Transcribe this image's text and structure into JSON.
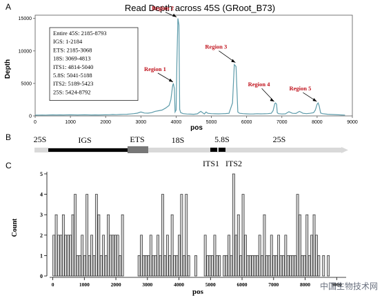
{
  "watermark": "中国生物技术网",
  "panels": {
    "a": "A",
    "b": "B",
    "c": "C"
  },
  "chart_data": [
    {
      "type": "line",
      "title": "Read Depth across 45S (GRoot_B73)",
      "xlabel": "pos",
      "ylabel": "Depth",
      "xlim": [
        0,
        9000
      ],
      "ylim": [
        0,
        15500
      ],
      "xticks": [
        0,
        1000,
        2000,
        3000,
        4000,
        5000,
        6000,
        7000,
        8000,
        9000
      ],
      "yticks": [
        0,
        5000,
        10000,
        15000
      ],
      "color": "#5b9aa9",
      "x": [
        0,
        100,
        200,
        300,
        400,
        500,
        600,
        700,
        800,
        900,
        1000,
        1100,
        1200,
        1300,
        1400,
        1500,
        1600,
        1700,
        1800,
        1900,
        2000,
        2100,
        2200,
        2300,
        2400,
        2500,
        2600,
        2700,
        2800,
        2900,
        3000,
        3100,
        3200,
        3300,
        3400,
        3500,
        3600,
        3700,
        3800,
        3850,
        3900,
        3920,
        3950,
        3970,
        4000,
        4020,
        4050,
        4080,
        4100,
        4130,
        4200,
        4300,
        4400,
        4500,
        4600,
        4700,
        4750,
        4800,
        4850,
        4900,
        5000,
        5100,
        5200,
        5300,
        5400,
        5500,
        5600,
        5650,
        5700,
        5750,
        5800,
        5900,
        6000,
        6100,
        6200,
        6300,
        6400,
        6500,
        6600,
        6700,
        6750,
        6800,
        6820,
        6850,
        6870,
        6900,
        7000,
        7100,
        7200,
        7300,
        7400,
        7500,
        7600,
        7700,
        7800,
        7900,
        7950,
        8000,
        8030,
        8060,
        8100,
        8150,
        8300,
        8500,
        8700,
        8792
      ],
      "y": [
        120,
        130,
        140,
        125,
        150,
        160,
        145,
        155,
        150,
        160,
        165,
        155,
        150,
        160,
        170,
        160,
        150,
        155,
        150,
        160,
        170,
        180,
        210,
        190,
        220,
        240,
        260,
        300,
        350,
        420,
        600,
        450,
        420,
        500,
        700,
        800,
        900,
        1200,
        1600,
        2500,
        4600,
        5000,
        4200,
        600,
        900,
        8000,
        15000,
        14000,
        1000,
        500,
        350,
        300,
        280,
        260,
        320,
        700,
        500,
        300,
        600,
        400,
        350,
        330,
        320,
        340,
        360,
        400,
        2000,
        7900,
        7600,
        600,
        400,
        350,
        320,
        300,
        310,
        340,
        320,
        330,
        350,
        400,
        800,
        1900,
        2000,
        1800,
        500,
        350,
        300,
        320,
        650,
        400,
        380,
        700,
        400,
        350,
        400,
        500,
        900,
        1800,
        2000,
        1500,
        450,
        350,
        250,
        200,
        150,
        130
      ],
      "legend_box": [
        "Entire 45S: 2185-8793",
        "IGS: 1-2184",
        "ETS: 2185-3068",
        "18S: 3069-4813",
        "ITS1: 4814-5040",
        "5.8S: 5041-5188",
        "ITS2: 5189-5423",
        "25S: 5424-8792"
      ],
      "annotations": [
        {
          "text": "Region 1",
          "x": 3950,
          "y": 5000
        },
        {
          "text": "Region 2",
          "x": 4050,
          "y": 15000
        },
        {
          "text": "Region 3",
          "x": 5720,
          "y": 8000
        },
        {
          "text": "Region 4",
          "x": 6820,
          "y": 2000
        },
        {
          "text": "Region 5",
          "x": 8030,
          "y": 2000
        }
      ]
    },
    {
      "type": "diagram",
      "labels_top": [
        "25S",
        "IGS",
        "ETS",
        "18S",
        "5.8S",
        "25S"
      ],
      "labels_bottom": [
        "ITS1",
        "ITS2"
      ]
    },
    {
      "type": "bar",
      "xlabel": "pos",
      "ylabel": "Count",
      "xlim": [
        -100,
        9300
      ],
      "ylim": [
        0,
        5.1
      ],
      "xticks": [
        0,
        1000,
        2000,
        3000,
        4000,
        5000,
        6000,
        7000,
        8000,
        9000
      ],
      "yticks": [
        0,
        1,
        2,
        3,
        4,
        5
      ],
      "bin_width": 75,
      "x": [
        0,
        75,
        150,
        225,
        300,
        375,
        450,
        525,
        600,
        675,
        750,
        825,
        900,
        975,
        1050,
        1125,
        1200,
        1275,
        1350,
        1425,
        1500,
        1575,
        1650,
        1725,
        1800,
        1875,
        1950,
        2025,
        2100,
        2175,
        2700,
        2775,
        2850,
        2925,
        3000,
        3075,
        3150,
        3225,
        3300,
        3375,
        3450,
        3525,
        3600,
        3675,
        3750,
        3825,
        3900,
        3975,
        4050,
        4125,
        4200,
        4275,
        4500,
        4800,
        4875,
        4950,
        5025,
        5100,
        5175,
        5250,
        5400,
        5475,
        5550,
        5625,
        5700,
        5775,
        5850,
        5925,
        6000,
        6075,
        6150,
        6225,
        6300,
        6375,
        6450,
        6525,
        6600,
        6675,
        6750,
        6825,
        6900,
        6975,
        7050,
        7125,
        7200,
        7275,
        7350,
        7425,
        7500,
        7575,
        7650,
        7725,
        7800,
        7875,
        7950,
        8025,
        8100,
        8175,
        8250,
        8325,
        8400,
        8550,
        8700
      ],
      "values": [
        2,
        3,
        2,
        2,
        3,
        2,
        2,
        2,
        3,
        4,
        1,
        1,
        2,
        1,
        4,
        1,
        2,
        1,
        4,
        3,
        1,
        2,
        1,
        3,
        2,
        2,
        2,
        2,
        1,
        3,
        1,
        2,
        1,
        1,
        1,
        2,
        1,
        1,
        2,
        1,
        4,
        1,
        2,
        1,
        3,
        1,
        1,
        2,
        4,
        1,
        4,
        1,
        1,
        2,
        1,
        1,
        1,
        2,
        1,
        1,
        1,
        1,
        2,
        1,
        5,
        2,
        3,
        1,
        4,
        2,
        1,
        1,
        1,
        1,
        1,
        2,
        1,
        3,
        1,
        1,
        2,
        1,
        1,
        2,
        1,
        1,
        2,
        1,
        1,
        1,
        1,
        4,
        3,
        1,
        1,
        3,
        1,
        2,
        3,
        2,
        1,
        1,
        1
      ]
    }
  ]
}
